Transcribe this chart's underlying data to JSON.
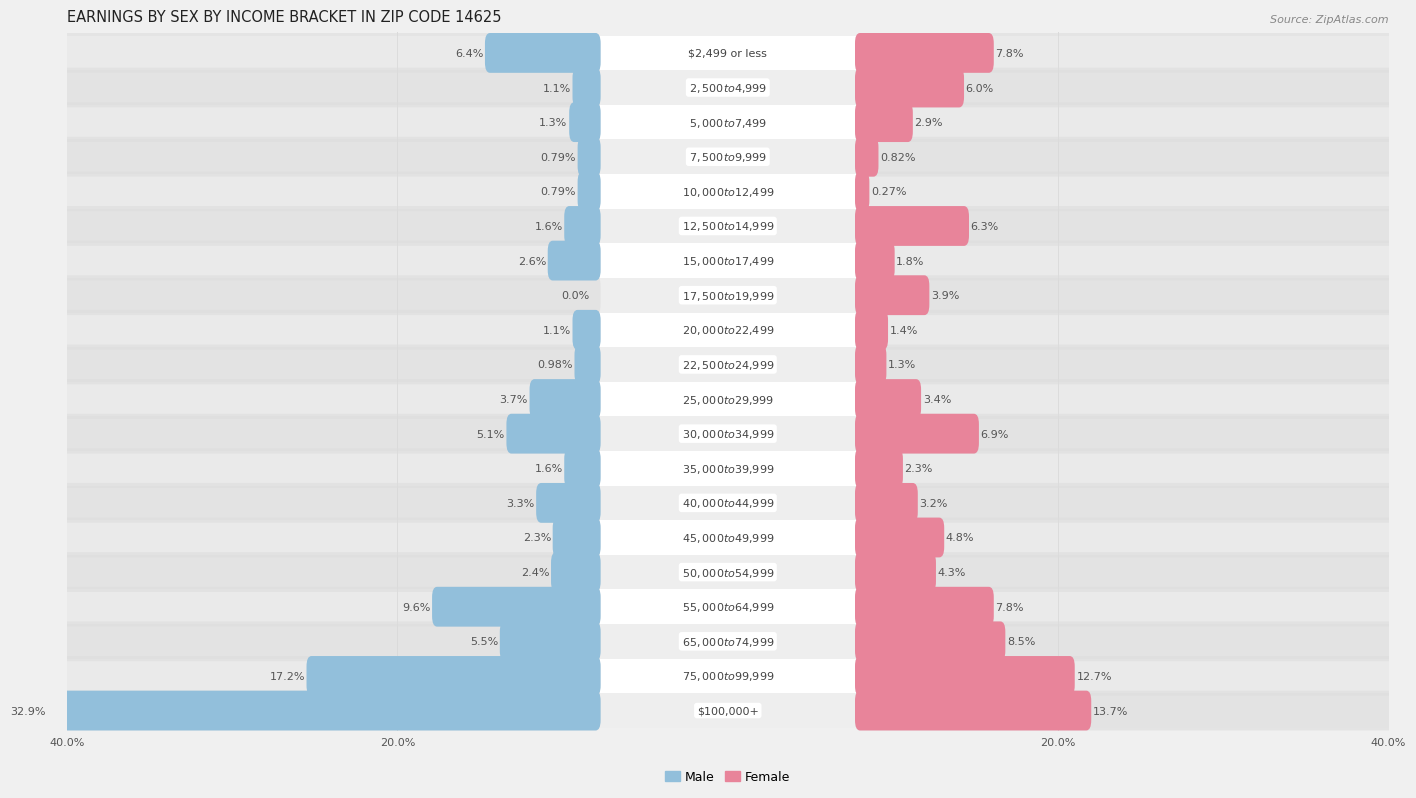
{
  "title": "EARNINGS BY SEX BY INCOME BRACKET IN ZIP CODE 14625",
  "source": "Source: ZipAtlas.com",
  "categories": [
    "$2,499 or less",
    "$2,500 to $4,999",
    "$5,000 to $7,499",
    "$7,500 to $9,999",
    "$10,000 to $12,499",
    "$12,500 to $14,999",
    "$15,000 to $17,499",
    "$17,500 to $19,999",
    "$20,000 to $22,499",
    "$22,500 to $24,999",
    "$25,000 to $29,999",
    "$30,000 to $34,999",
    "$35,000 to $39,999",
    "$40,000 to $44,999",
    "$45,000 to $49,999",
    "$50,000 to $54,999",
    "$55,000 to $64,999",
    "$65,000 to $74,999",
    "$75,000 to $99,999",
    "$100,000+"
  ],
  "male_values": [
    6.4,
    1.1,
    1.3,
    0.79,
    0.79,
    1.6,
    2.6,
    0.0,
    1.1,
    0.98,
    3.7,
    5.1,
    1.6,
    3.3,
    2.3,
    2.4,
    9.6,
    5.5,
    17.2,
    32.9
  ],
  "female_values": [
    7.8,
    6.0,
    2.9,
    0.82,
    0.27,
    6.3,
    1.8,
    3.9,
    1.4,
    1.3,
    3.4,
    6.9,
    2.3,
    3.2,
    4.8,
    4.3,
    7.8,
    8.5,
    12.7,
    13.7
  ],
  "male_label_values": [
    "6.4%",
    "1.1%",
    "1.3%",
    "0.79%",
    "0.79%",
    "1.6%",
    "2.6%",
    "0.0%",
    "1.1%",
    "0.98%",
    "3.7%",
    "5.1%",
    "1.6%",
    "3.3%",
    "2.3%",
    "2.4%",
    "9.6%",
    "5.5%",
    "17.2%",
    "32.9%"
  ],
  "female_label_values": [
    "7.8%",
    "6.0%",
    "2.9%",
    "0.82%",
    "0.27%",
    "6.3%",
    "1.8%",
    "3.9%",
    "1.4%",
    "1.3%",
    "3.4%",
    "6.9%",
    "2.3%",
    "3.2%",
    "4.8%",
    "4.3%",
    "7.8%",
    "8.5%",
    "12.7%",
    "13.7%"
  ],
  "male_color": "#92bfdb",
  "female_color": "#e8849a",
  "label_color": "#555555",
  "cat_color": "#444444",
  "row_colors": [
    "#ffffff",
    "#eeeeee"
  ],
  "background_color": "#f0f0f0",
  "xlim": 40.0,
  "bar_height": 0.55,
  "title_fontsize": 10.5,
  "axis_fontsize": 8,
  "label_fontsize": 8,
  "cat_fontsize": 8,
  "source_fontsize": 8
}
